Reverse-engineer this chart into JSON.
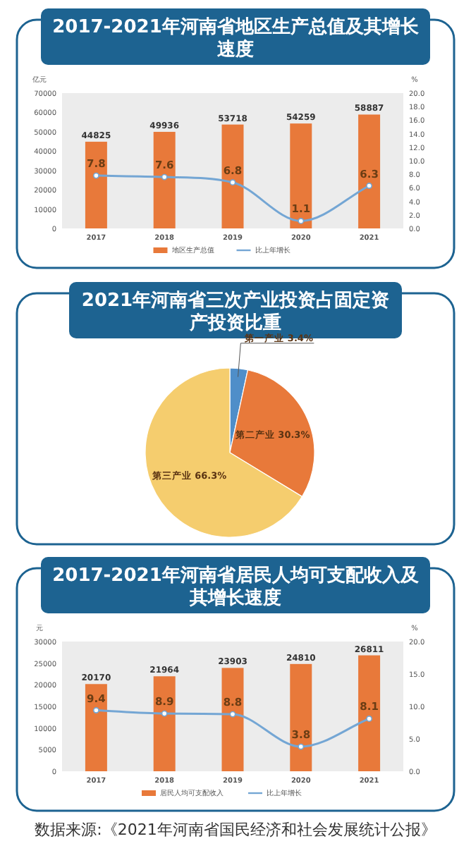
{
  "chart_data": [
    {
      "type": "bar",
      "title": "2017-2021年河南省地区生产总值及其增长速度",
      "ylabel": "亿元",
      "y2label": "%",
      "categories": [
        "2017",
        "2018",
        "2019",
        "2020",
        "2021"
      ],
      "series": [
        {
          "name": "地区生产总值",
          "type": "bar",
          "color": "#e8793a",
          "values": [
            44825,
            49936,
            53718,
            54259,
            58887
          ]
        },
        {
          "name": "比上年增长",
          "type": "line",
          "axis": "y2",
          "color": "#74a6d4",
          "marker": "circle",
          "values": [
            7.8,
            7.6,
            6.8,
            1.1,
            6.3
          ]
        }
      ],
      "ylim": [
        0,
        70000
      ],
      "yticks": [
        0,
        10000,
        20000,
        30000,
        40000,
        50000,
        60000,
        70000
      ],
      "y2lim": [
        0,
        20
      ],
      "y2ticks": [
        {
          "value": 0,
          "label": "0.0"
        },
        {
          "value": 2,
          "label": "2.0"
        },
        {
          "value": 4,
          "label": "4.0"
        },
        {
          "value": 6,
          "label": "6.0"
        },
        {
          "value": 8,
          "label": "8.0"
        },
        {
          "value": 10,
          "label": "10.0"
        },
        {
          "value": 12,
          "label": "12.0"
        },
        {
          "value": 14,
          "label": "14.0"
        },
        {
          "value": 16,
          "label": "16.0"
        },
        {
          "value": 18,
          "label": "18.0"
        },
        {
          "value": 20,
          "label": "20.0"
        }
      ],
      "data_labels": true,
      "legend": "bottom"
    },
    {
      "type": "pie",
      "title": "2021年河南省三次产业投资占固定资产投资比重",
      "categories": [
        "第一产业",
        "第二产业",
        "第三产业"
      ],
      "values": [
        3.4,
        30.3,
        66.3
      ],
      "value_labels": [
        "3.4%",
        "30.3%",
        "66.3%"
      ],
      "colors": [
        "#4f8ec9",
        "#e8793a",
        "#f5cd6e"
      ]
    },
    {
      "type": "bar",
      "title": "2017-2021年河南省居民人均可支配收入及其增长速度",
      "ylabel": "元",
      "y2label": "%",
      "categories": [
        "2017",
        "2018",
        "2019",
        "2020",
        "2021"
      ],
      "series": [
        {
          "name": "居民人均可支配收入",
          "type": "bar",
          "color": "#e8793a",
          "values": [
            20170,
            21964,
            23903,
            24810,
            26811
          ]
        },
        {
          "name": "比上年增长",
          "type": "line",
          "axis": "y2",
          "color": "#74a6d4",
          "marker": "circle",
          "values": [
            9.4,
            8.9,
            8.8,
            3.8,
            8.1
          ]
        }
      ],
      "ylim": [
        0,
        30000
      ],
      "yticks": [
        0,
        5000,
        10000,
        15000,
        20000,
        25000,
        30000
      ],
      "y2lim": [
        0,
        20
      ],
      "y2ticks": [
        {
          "value": 0,
          "label": "0.0"
        },
        {
          "value": 5,
          "label": "5.0"
        },
        {
          "value": 10,
          "label": "10.0"
        },
        {
          "value": 15,
          "label": "15.0"
        },
        {
          "value": 20,
          "label": "20.0"
        }
      ],
      "data_labels": true,
      "legend": "bottom",
      "annotations": [
        "数据来源:《2021年河南省国民经济和社会发展统计公报》"
      ]
    }
  ]
}
